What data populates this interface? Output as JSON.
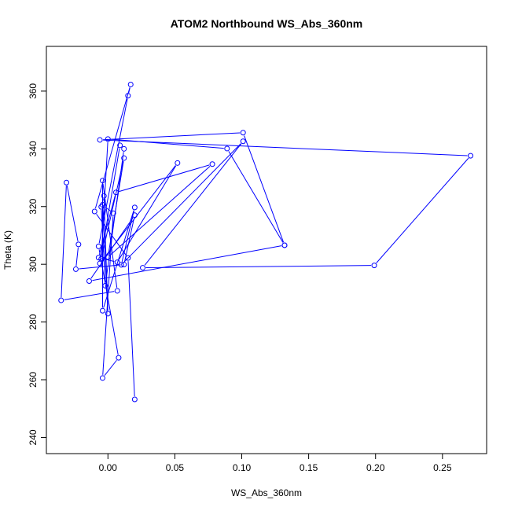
{
  "chart_data": {
    "type": "line",
    "title": "ATOM2 Northbound WS_Abs_360nm",
    "xlabel": "WS_Abs_360nm",
    "ylabel": "Theta (K)",
    "xlim": [
      -0.046,
      0.283
    ],
    "ylim": [
      234.4,
      375.5
    ],
    "x_ticks": [
      "0.00",
      "0.05",
      "0.10",
      "0.15",
      "0.20",
      "0.25"
    ],
    "y_ticks": [
      "240",
      "260",
      "280",
      "300",
      "320",
      "340",
      "360"
    ],
    "grid": false,
    "legend": "none",
    "series_color": "#0000ff",
    "series": [
      {
        "points": [
          {
            "x": 0.02,
            "y": 253.2
          },
          {
            "x": 0.015,
            "y": 302.2
          },
          {
            "x": -0.01,
            "y": 318.3
          },
          {
            "x": 0.017,
            "y": 362.3
          },
          {
            "x": 0.015,
            "y": 358.4
          },
          {
            "x": -0.007,
            "y": 306.2
          },
          {
            "x": 0.008,
            "y": 267.6
          },
          {
            "x": -0.004,
            "y": 260.6
          },
          {
            "x": 0.004,
            "y": 317.7
          },
          {
            "x": -0.004,
            "y": 320.6
          },
          {
            "x": 0.0,
            "y": 282.9
          },
          {
            "x": -0.003,
            "y": 323.7
          },
          {
            "x": -0.005,
            "y": 319.9
          },
          {
            "x": -0.002,
            "y": 292.6
          },
          {
            "x": 0.012,
            "y": 340.0
          },
          {
            "x": 0.009,
            "y": 341.2
          },
          {
            "x": -0.006,
            "y": 300.3
          },
          {
            "x": 0.052,
            "y": 335.1
          },
          {
            "x": 0.007,
            "y": 300.7
          },
          {
            "x": -0.007,
            "y": 302.3
          },
          {
            "x": 0.006,
            "y": 324.9
          },
          {
            "x": 0.078,
            "y": 334.7
          },
          {
            "x": 0.0,
            "y": 302.5
          },
          {
            "x": 0.012,
            "y": 336.8
          },
          {
            "x": -0.005,
            "y": 301.9
          },
          {
            "x": 0.0,
            "y": 343.4
          },
          {
            "x": 0.089,
            "y": 340.1
          },
          {
            "x": 0.132,
            "y": 306.6
          },
          {
            "x": 0.101,
            "y": 345.6
          },
          {
            "x": -0.006,
            "y": 343.1
          },
          {
            "x": 0.271,
            "y": 337.6
          },
          {
            "x": 0.199,
            "y": 299.6
          },
          {
            "x": 0.026,
            "y": 298.8
          },
          {
            "x": 0.101,
            "y": 342.6
          },
          {
            "x": 0.01,
            "y": 299.8
          },
          {
            "x": 0.02,
            "y": 319.7
          },
          {
            "x": -0.004,
            "y": 283.9
          },
          {
            "x": -0.004,
            "y": 329.0
          },
          {
            "x": 0.007,
            "y": 290.8
          },
          {
            "x": -0.035,
            "y": 287.5
          },
          {
            "x": -0.031,
            "y": 328.3
          },
          {
            "x": -0.022,
            "y": 306.9
          },
          {
            "x": -0.024,
            "y": 298.3
          },
          {
            "x": 0.012,
            "y": 299.9
          },
          {
            "x": 0.02,
            "y": 317.0
          },
          {
            "x": -0.014,
            "y": 294.2
          },
          {
            "x": 0.132,
            "y": 306.6
          }
        ]
      }
    ]
  }
}
